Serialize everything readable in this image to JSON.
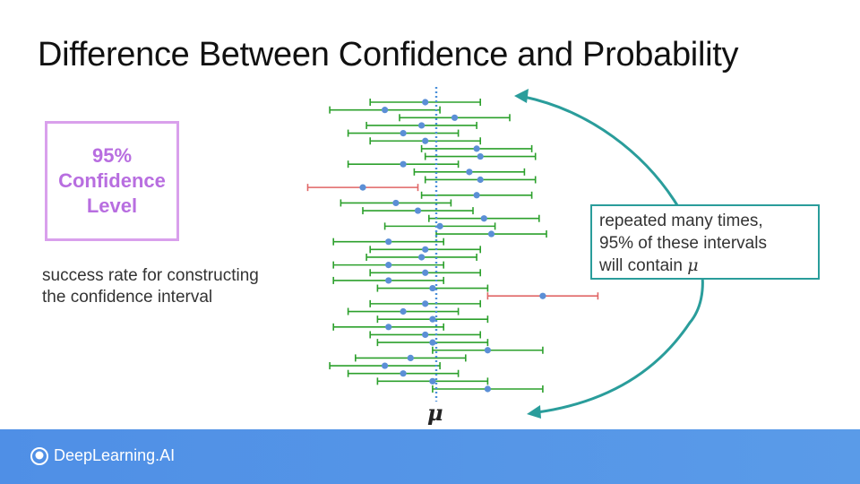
{
  "slide": {
    "title": "Difference Between Confidence and Probability"
  },
  "confidence_box": {
    "text": "95%\nConfidence\nLevel"
  },
  "description": {
    "line1": "success rate for constructing",
    "line2": "the confidence interval"
  },
  "callout": {
    "line1": "repeated many times,",
    "line2": "95% of these intervals",
    "line3_prefix": "will contain ",
    "line3_symbol": "μ"
  },
  "mu_label": "μ",
  "footer": {
    "brand": "DeepLearning.AI"
  },
  "colors": {
    "capture": "#2ca02c",
    "miss": "#e06666",
    "point": "#5b8fd6",
    "mean_line": "#4a90d9",
    "arrow": "#2a9d9b",
    "box_border": "#d9a0ec",
    "box_text": "#b86ee0"
  },
  "chart_data": {
    "type": "interval",
    "true_mean": 0,
    "intervals": [
      {
        "center": -0.3,
        "half_width": 1.5,
        "contains_mean": true
      },
      {
        "center": -1.4,
        "half_width": 1.5,
        "contains_mean": true
      },
      {
        "center": 0.5,
        "half_width": 1.5,
        "contains_mean": true
      },
      {
        "center": -0.4,
        "half_width": 1.5,
        "contains_mean": true
      },
      {
        "center": -0.9,
        "half_width": 1.5,
        "contains_mean": true
      },
      {
        "center": -0.3,
        "half_width": 1.5,
        "contains_mean": true
      },
      {
        "center": 1.1,
        "half_width": 1.5,
        "contains_mean": true
      },
      {
        "center": 1.2,
        "half_width": 1.5,
        "contains_mean": true
      },
      {
        "center": -0.9,
        "half_width": 1.5,
        "contains_mean": true
      },
      {
        "center": 0.9,
        "half_width": 1.5,
        "contains_mean": true
      },
      {
        "center": 1.2,
        "half_width": 1.5,
        "contains_mean": true
      },
      {
        "center": -2.0,
        "half_width": 1.5,
        "contains_mean": false
      },
      {
        "center": 1.1,
        "half_width": 1.5,
        "contains_mean": true
      },
      {
        "center": -1.1,
        "half_width": 1.5,
        "contains_mean": true
      },
      {
        "center": -0.5,
        "half_width": 1.5,
        "contains_mean": true
      },
      {
        "center": 1.3,
        "half_width": 1.5,
        "contains_mean": true
      },
      {
        "center": 0.1,
        "half_width": 1.5,
        "contains_mean": true
      },
      {
        "center": 1.5,
        "half_width": 1.5,
        "contains_mean": true
      },
      {
        "center": -1.3,
        "half_width": 1.5,
        "contains_mean": true
      },
      {
        "center": -0.3,
        "half_width": 1.5,
        "contains_mean": true
      },
      {
        "center": -0.4,
        "half_width": 1.5,
        "contains_mean": true
      },
      {
        "center": -1.3,
        "half_width": 1.5,
        "contains_mean": true
      },
      {
        "center": -0.3,
        "half_width": 1.5,
        "contains_mean": true
      },
      {
        "center": -1.3,
        "half_width": 1.5,
        "contains_mean": true
      },
      {
        "center": -0.1,
        "half_width": 1.5,
        "contains_mean": true
      },
      {
        "center": 2.9,
        "half_width": 1.5,
        "contains_mean": false
      },
      {
        "center": -0.3,
        "half_width": 1.5,
        "contains_mean": true
      },
      {
        "center": -0.9,
        "half_width": 1.5,
        "contains_mean": true
      },
      {
        "center": -0.1,
        "half_width": 1.5,
        "contains_mean": true
      },
      {
        "center": -1.3,
        "half_width": 1.5,
        "contains_mean": true
      },
      {
        "center": -0.3,
        "half_width": 1.5,
        "contains_mean": true
      },
      {
        "center": -0.1,
        "half_width": 1.5,
        "contains_mean": true
      },
      {
        "center": 1.4,
        "half_width": 1.5,
        "contains_mean": true
      },
      {
        "center": -0.7,
        "half_width": 1.5,
        "contains_mean": true
      },
      {
        "center": -1.4,
        "half_width": 1.5,
        "contains_mean": true
      },
      {
        "center": -0.9,
        "half_width": 1.5,
        "contains_mean": true
      },
      {
        "center": -0.1,
        "half_width": 1.5,
        "contains_mean": true
      },
      {
        "center": 1.4,
        "half_width": 1.5,
        "contains_mean": true
      }
    ]
  }
}
